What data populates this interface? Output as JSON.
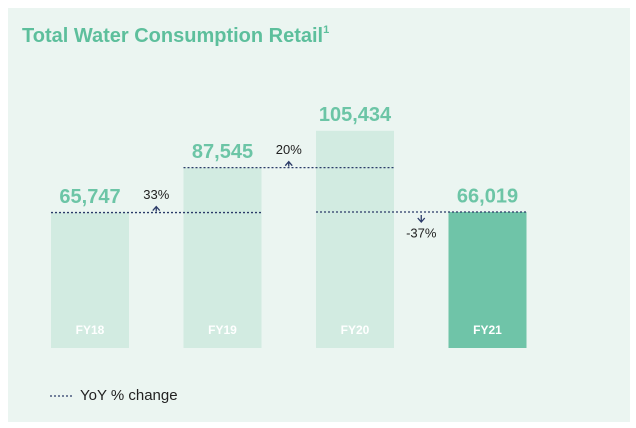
{
  "chart_data": {
    "type": "bar",
    "title": "Total Water Consumption Retail",
    "title_footnote": "1",
    "categories": [
      "FY18",
      "FY19",
      "FY20",
      "FY21"
    ],
    "values": [
      65747,
      87545,
      105434,
      66019
    ],
    "value_labels": [
      "65,747",
      "87,545",
      "105,434",
      "66,019"
    ],
    "colors": [
      "#d2ebe1",
      "#d2ebe1",
      "#d2ebe1",
      "#6fc4a8"
    ],
    "label_color": "#6cc5a6",
    "changes": {
      "name": "YoY % change",
      "color": "#2b3b68",
      "values": [
        33,
        20,
        -37
      ],
      "value_labels": [
        "33%",
        "20%",
        "-37%"
      ]
    }
  }
}
